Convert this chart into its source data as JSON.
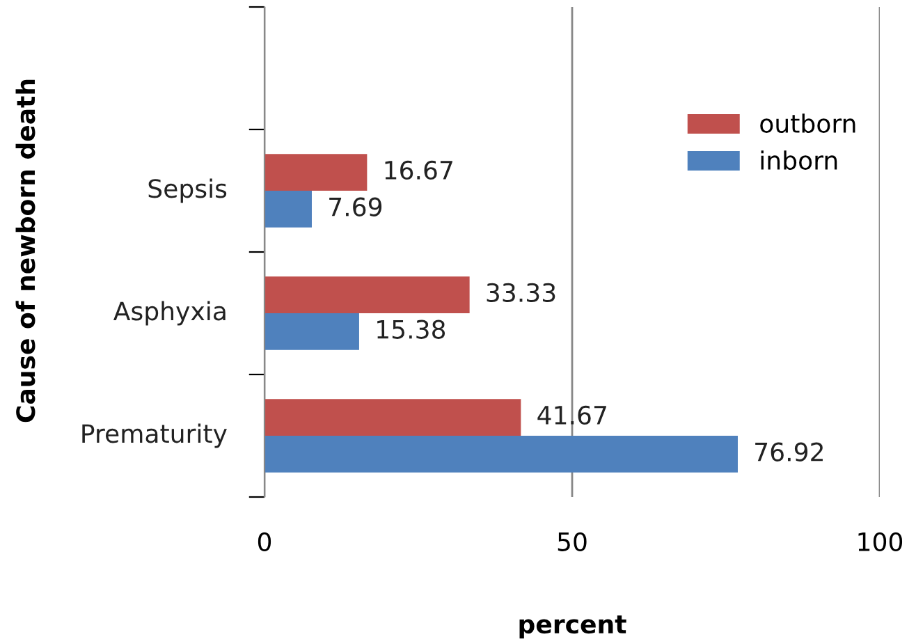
{
  "chart_data": {
    "type": "bar",
    "orientation": "horizontal",
    "xlabel": "percent",
    "ylabel": "Cause of newborn death",
    "categories": [
      null,
      "Sepsis",
      "Asphyxia",
      "Prematurity"
    ],
    "series": [
      {
        "name": "inborn",
        "color": "#4f81bd",
        "values": [
          null,
          7.69,
          15.38,
          76.92
        ]
      },
      {
        "name": "outborn",
        "color": "#c0504d",
        "values": [
          null,
          16.67,
          33.33,
          41.67
        ]
      }
    ],
    "xlim": [
      0,
      100
    ],
    "xticks": [
      0,
      50,
      100
    ],
    "grid": "x",
    "legend": "right",
    "data_labels": true
  }
}
